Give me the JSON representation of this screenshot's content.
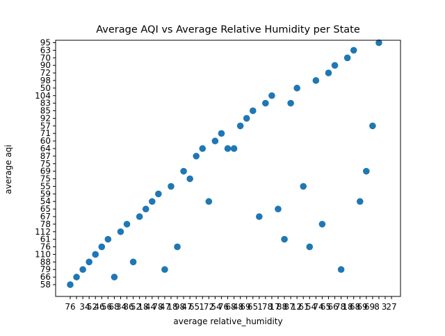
{
  "chart_data": {
    "type": "scatter",
    "title": "Average AQI vs Average Relative Humidity per State",
    "xlabel": "average relative_humidity",
    "ylabel": "average aqi",
    "marker_color": "#1f77b4",
    "grid": false,
    "x_categorical": true,
    "y_categories": [
      "58",
      "66",
      "79",
      "88",
      "110",
      "76",
      "61",
      "112",
      "78",
      "67",
      "65",
      "54",
      "59",
      "55",
      "75",
      "69",
      "75",
      "87",
      "64",
      "60",
      "71",
      "57",
      "92",
      "85",
      "83",
      "104",
      "50",
      "98",
      "72",
      "90",
      "70",
      "63",
      "95"
    ],
    "x_tick_count": 52,
    "x_tick_labels_visible": [
      "76",
      "",
      "34",
      "52",
      "46",
      "56",
      "68",
      "34",
      "86",
      "52",
      "18",
      "44",
      "78",
      "47",
      "18",
      "98",
      "47",
      "65",
      "1",
      "72",
      "54",
      "76",
      "68",
      "48",
      "69",
      "65",
      "1",
      "78",
      "17",
      "88",
      "87",
      "12",
      "61",
      "54",
      "74",
      "65",
      "66",
      "78",
      "18",
      "68",
      "69",
      "69",
      "8",
      "3",
      "27"
    ],
    "points": [
      {
        "x": 1,
        "y": "58"
      },
      {
        "x": 2,
        "y": "66"
      },
      {
        "x": 3,
        "y": "79"
      },
      {
        "x": 4,
        "y": "88"
      },
      {
        "x": 5,
        "y": "110"
      },
      {
        "x": 6,
        "y": "76"
      },
      {
        "x": 7,
        "y": "61"
      },
      {
        "x": 8,
        "y": "66"
      },
      {
        "x": 9,
        "y": "112"
      },
      {
        "x": 10,
        "y": "78"
      },
      {
        "x": 11,
        "y": "88"
      },
      {
        "x": 12,
        "y": "67"
      },
      {
        "x": 13,
        "y": "65"
      },
      {
        "x": 14,
        "y": "54"
      },
      {
        "x": 15,
        "y": "59"
      },
      {
        "x": 16,
        "y": "79"
      },
      {
        "x": 17,
        "y": "55"
      },
      {
        "x": 18,
        "y": "76"
      },
      {
        "x": 19,
        "y": "69"
      },
      {
        "x": 20,
        "y": "75"
      },
      {
        "x": 21,
        "y": "87"
      },
      {
        "x": 22,
        "y": "64"
      },
      {
        "x": 23,
        "y": "54"
      },
      {
        "x": 24,
        "y": "60"
      },
      {
        "x": 25,
        "y": "71"
      },
      {
        "x": 26,
        "y": "64"
      },
      {
        "x": 27,
        "y": "64"
      },
      {
        "x": 28,
        "y": "57"
      },
      {
        "x": 29,
        "y": "92"
      },
      {
        "x": 30,
        "y": "85"
      },
      {
        "x": 31,
        "y": "67"
      },
      {
        "x": 32,
        "y": "83"
      },
      {
        "x": 33,
        "y": "104"
      },
      {
        "x": 34,
        "y": "65"
      },
      {
        "x": 35,
        "y": "61"
      },
      {
        "x": 36,
        "y": "83"
      },
      {
        "x": 37,
        "y": "50"
      },
      {
        "x": 38,
        "y": "55"
      },
      {
        "x": 39,
        "y": "76"
      },
      {
        "x": 40,
        "y": "98"
      },
      {
        "x": 41,
        "y": "78"
      },
      {
        "x": 42,
        "y": "72"
      },
      {
        "x": 43,
        "y": "90"
      },
      {
        "x": 44,
        "y": "79"
      },
      {
        "x": 45,
        "y": "70"
      },
      {
        "x": 46,
        "y": "63"
      },
      {
        "x": 47,
        "y": "54"
      },
      {
        "x": 48,
        "y": "69"
      },
      {
        "x": 49,
        "y": "57"
      },
      {
        "x": 50,
        "y": "95"
      }
    ]
  }
}
